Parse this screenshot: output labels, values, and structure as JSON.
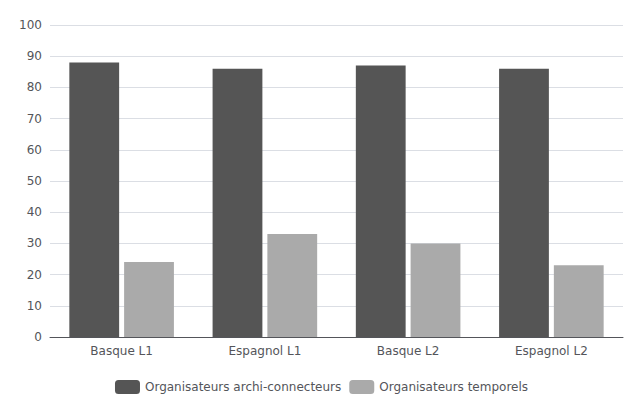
{
  "chart_data": {
    "type": "bar",
    "categories": [
      "Basque L1",
      "Espagnol L1",
      "Basque L2",
      "Espagnol L2"
    ],
    "series": [
      {
        "name": "Organisateurs archi-connecteurs",
        "color": "#555555",
        "values": [
          88,
          86,
          87,
          86
        ]
      },
      {
        "name": "Organisateurs temporels",
        "color": "#aaaaaa",
        "values": [
          24,
          33,
          30,
          23
        ]
      }
    ],
    "ylim": [
      0,
      100
    ],
    "yticks": [
      0,
      10,
      20,
      30,
      40,
      50,
      60,
      70,
      80,
      90,
      100
    ],
    "grid": true,
    "legend": "bottom"
  }
}
